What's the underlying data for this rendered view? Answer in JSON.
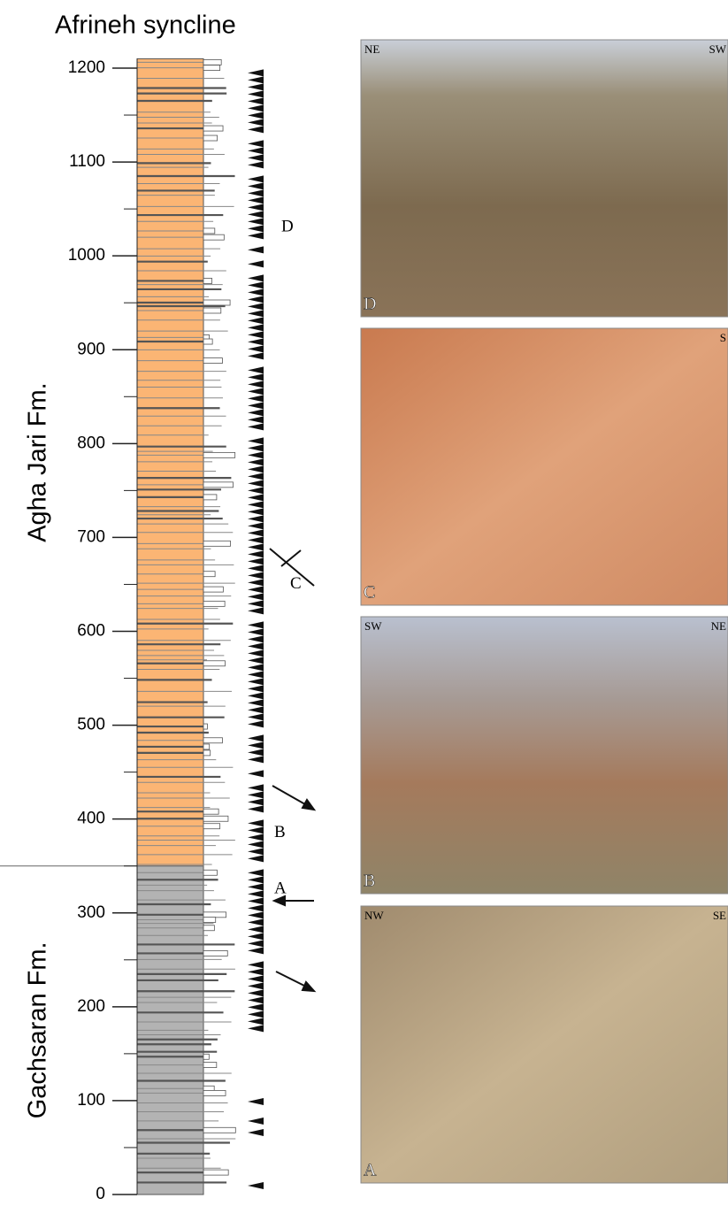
{
  "title": "Afrineh syncline",
  "axis": {
    "yticks": [
      0,
      100,
      200,
      300,
      400,
      500,
      600,
      700,
      800,
      900,
      1000,
      1100,
      1200
    ]
  },
  "column_top": 1210,
  "formations": [
    {
      "name": "Agha Jari Fm.",
      "base": 350,
      "top": 1210
    },
    {
      "name": "Gachsaran Fm.",
      "base": 0,
      "top": 350
    }
  ],
  "annotations": [
    {
      "label": "D",
      "level": 1030
    },
    {
      "label": "C",
      "level": 650
    },
    {
      "label": "B",
      "level": 385
    },
    {
      "label": "A",
      "level": 325
    }
  ],
  "photos": [
    {
      "label": "D",
      "left": "NE",
      "right": "SW"
    },
    {
      "label": "C",
      "left": "",
      "right": "S"
    },
    {
      "label": "B",
      "left": "SW",
      "right": "NE"
    },
    {
      "label": "A",
      "left": "NW",
      "right": "SE"
    }
  ]
}
